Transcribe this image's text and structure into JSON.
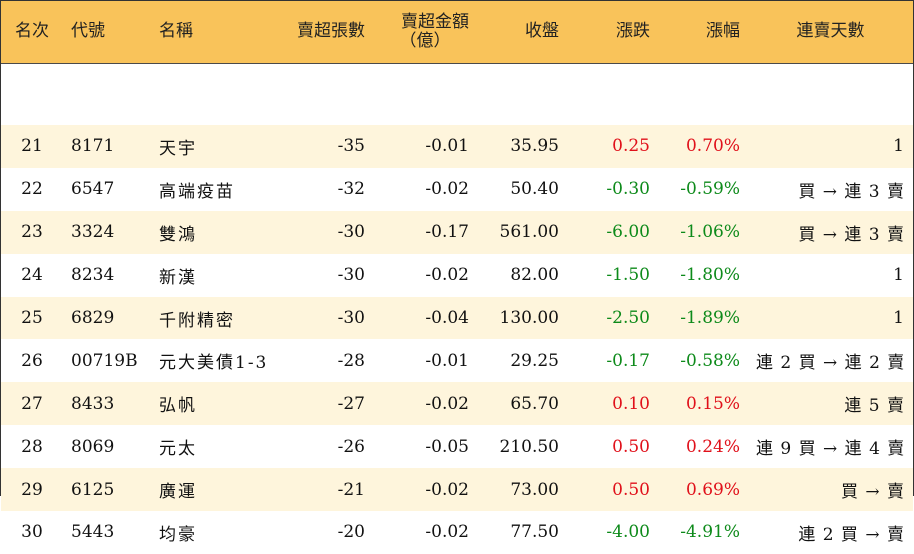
{
  "columns": {
    "rank": "名次",
    "code": "代號",
    "name": "名稱",
    "net_sell_lots": "賣超張數",
    "net_sell_amount": "賣超金額",
    "net_sell_amount_unit": "（億）",
    "close": "收盤",
    "change": "漲跌",
    "change_pct": "漲幅",
    "streak": "連賣天數"
  },
  "colors": {
    "header_bg": "#f9c35a",
    "odd_row_bg": "#fef5dc",
    "up": "#e0101a",
    "down": "#0d8a1a"
  },
  "rows": [
    {
      "rank": "21",
      "code": "8171",
      "name": "天宇",
      "net_sell_lots": "-35",
      "net_sell_amount": "-0.01",
      "close": "35.95",
      "change": "0.25",
      "change_pct": "0.70%",
      "direction": "up",
      "streak": "1"
    },
    {
      "rank": "22",
      "code": "6547",
      "name": "高端疫苗",
      "net_sell_lots": "-32",
      "net_sell_amount": "-0.02",
      "close": "50.40",
      "change": "-0.30",
      "change_pct": "-0.59%",
      "direction": "down",
      "streak": "買 → 連 3 賣"
    },
    {
      "rank": "23",
      "code": "3324",
      "name": "雙鴻",
      "net_sell_lots": "-30",
      "net_sell_amount": "-0.17",
      "close": "561.00",
      "change": "-6.00",
      "change_pct": "-1.06%",
      "direction": "down",
      "streak": "買 → 連 3 賣"
    },
    {
      "rank": "24",
      "code": "8234",
      "name": "新漢",
      "net_sell_lots": "-30",
      "net_sell_amount": "-0.02",
      "close": "82.00",
      "change": "-1.50",
      "change_pct": "-1.80%",
      "direction": "down",
      "streak": "1"
    },
    {
      "rank": "25",
      "code": "6829",
      "name": "千附精密",
      "net_sell_lots": "-30",
      "net_sell_amount": "-0.04",
      "close": "130.00",
      "change": "-2.50",
      "change_pct": "-1.89%",
      "direction": "down",
      "streak": "1"
    },
    {
      "rank": "26",
      "code": "00719B",
      "name": "元大美債1-3",
      "net_sell_lots": "-28",
      "net_sell_amount": "-0.01",
      "close": "29.25",
      "change": "-0.17",
      "change_pct": "-0.58%",
      "direction": "down",
      "streak": "連 2 買 → 連 2 賣"
    },
    {
      "rank": "27",
      "code": "8433",
      "name": "弘帆",
      "net_sell_lots": "-27",
      "net_sell_amount": "-0.02",
      "close": "65.70",
      "change": "0.10",
      "change_pct": "0.15%",
      "direction": "up",
      "streak": "連 5 賣"
    },
    {
      "rank": "28",
      "code": "8069",
      "name": "元太",
      "net_sell_lots": "-26",
      "net_sell_amount": "-0.05",
      "close": "210.50",
      "change": "0.50",
      "change_pct": "0.24%",
      "direction": "up",
      "streak": "連 9 買 → 連 4 賣"
    },
    {
      "rank": "29",
      "code": "6125",
      "name": "廣運",
      "net_sell_lots": "-21",
      "net_sell_amount": "-0.02",
      "close": "73.00",
      "change": "0.50",
      "change_pct": "0.69%",
      "direction": "up",
      "streak": "買 → 賣"
    },
    {
      "rank": "30",
      "code": "5443",
      "name": "均豪",
      "net_sell_lots": "-20",
      "net_sell_amount": "-0.02",
      "close": "77.50",
      "change": "-4.00",
      "change_pct": "-4.91%",
      "direction": "down",
      "streak": "連 2 買 → 賣"
    }
  ]
}
